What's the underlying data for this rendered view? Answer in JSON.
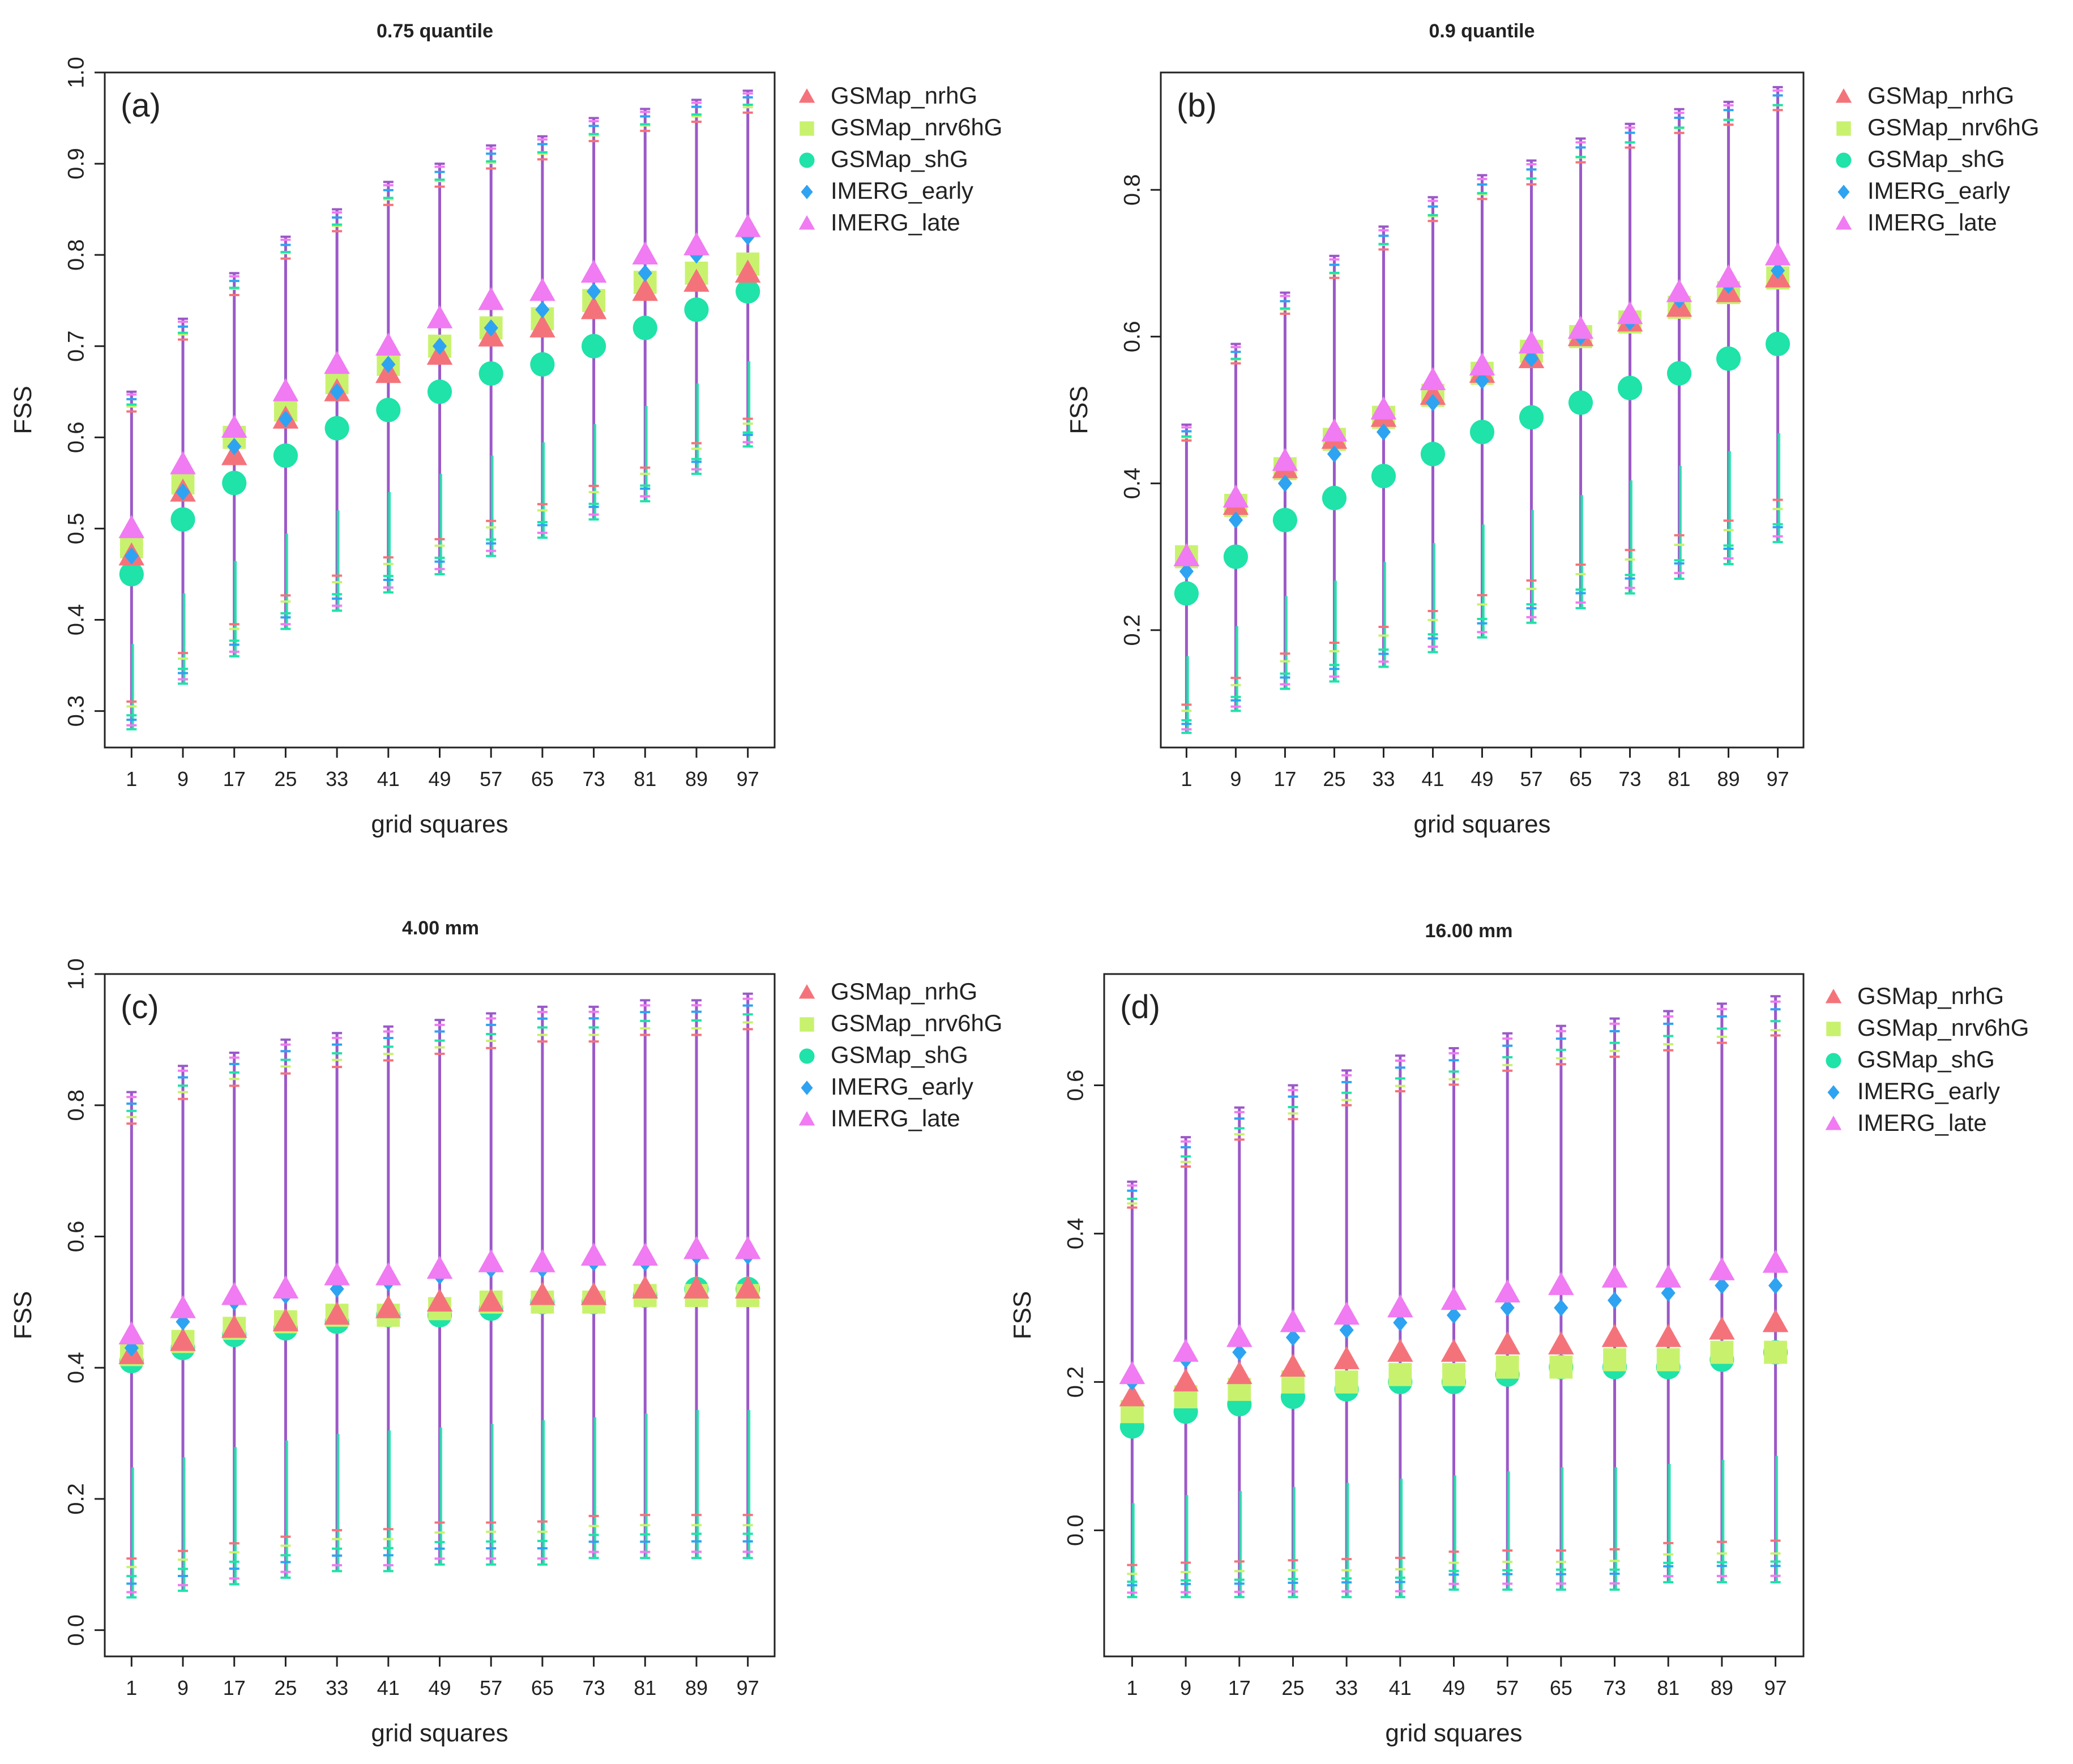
{
  "figure": {
    "legend_labels": [
      "GSMap_nrhG",
      "GSMap_nrv6hG",
      "GSMap_shG",
      "IMERG_early",
      "IMERG_late"
    ],
    "series_style": [
      {
        "name": "GSMap_nrhG",
        "color": "#F4737B",
        "marker": "triangle"
      },
      {
        "name": "GSMap_nrv6hG",
        "color": "#C8F26E",
        "marker": "square"
      },
      {
        "name": "GSMap_shG",
        "color": "#1FE3A8",
        "marker": "circle"
      },
      {
        "name": "IMERG_early",
        "color": "#2EA3F2",
        "marker": "diamond"
      },
      {
        "name": "IMERG_late",
        "color": "#F07BF2",
        "marker": "triangle"
      }
    ],
    "error_bar_color": "#9B59C8"
  },
  "chart_data": [
    {
      "type": "scatter",
      "panel_label": "(a)",
      "title": "0.75 quantile",
      "xlabel": "grid squares",
      "ylabel": "FSS",
      "categories": [
        1,
        9,
        17,
        25,
        33,
        41,
        49,
        57,
        65,
        73,
        81,
        89,
        97
      ],
      "ylim": [
        0.26,
        1.0
      ],
      "yticks": [
        0.3,
        0.4,
        0.5,
        0.6,
        0.7,
        0.8,
        0.9,
        1.0
      ],
      "legend_position": "right",
      "error_bars": {
        "lower_outer": [
          0.28,
          0.33,
          0.36,
          0.39,
          0.41,
          0.43,
          0.45,
          0.47,
          0.49,
          0.51,
          0.53,
          0.56,
          0.59
        ],
        "upper_outer": [
          0.65,
          0.73,
          0.78,
          0.82,
          0.85,
          0.88,
          0.9,
          0.92,
          0.93,
          0.95,
          0.96,
          0.97,
          0.98
        ]
      },
      "series": [
        {
          "name": "GSMap_nrhG",
          "values": [
            0.47,
            0.54,
            0.58,
            0.62,
            0.65,
            0.67,
            0.69,
            0.71,
            0.72,
            0.74,
            0.76,
            0.77,
            0.78
          ]
        },
        {
          "name": "GSMap_nrv6hG",
          "values": [
            0.48,
            0.55,
            0.6,
            0.63,
            0.66,
            0.68,
            0.7,
            0.72,
            0.73,
            0.75,
            0.77,
            0.78,
            0.79
          ]
        },
        {
          "name": "GSMap_shG",
          "values": [
            0.45,
            0.51,
            0.55,
            0.58,
            0.61,
            0.63,
            0.65,
            0.67,
            0.68,
            0.7,
            0.72,
            0.74,
            0.76
          ]
        },
        {
          "name": "IMERG_early",
          "values": [
            0.47,
            0.54,
            0.59,
            0.62,
            0.65,
            0.68,
            0.7,
            0.72,
            0.74,
            0.76,
            0.78,
            0.8,
            0.82
          ]
        },
        {
          "name": "IMERG_late",
          "values": [
            0.5,
            0.57,
            0.61,
            0.65,
            0.68,
            0.7,
            0.73,
            0.75,
            0.76,
            0.78,
            0.8,
            0.81,
            0.83
          ]
        }
      ]
    },
    {
      "type": "scatter",
      "panel_label": "(b)",
      "title": "0.9 quantile",
      "xlabel": "grid squares",
      "ylabel": "FSS",
      "categories": [
        1,
        9,
        17,
        25,
        33,
        41,
        49,
        57,
        65,
        73,
        81,
        89,
        97
      ],
      "ylim": [
        0.04,
        0.96
      ],
      "yticks": [
        0.2,
        0.4,
        0.6,
        0.8
      ],
      "legend_position": "right",
      "error_bars": {
        "lower_outer": [
          0.06,
          0.09,
          0.12,
          0.13,
          0.15,
          0.17,
          0.19,
          0.21,
          0.23,
          0.25,
          0.27,
          0.29,
          0.32
        ],
        "upper_outer": [
          0.48,
          0.59,
          0.66,
          0.71,
          0.75,
          0.79,
          0.82,
          0.84,
          0.87,
          0.89,
          0.91,
          0.92,
          0.94
        ]
      },
      "series": [
        {
          "name": "GSMap_nrhG",
          "values": [
            0.3,
            0.37,
            0.42,
            0.46,
            0.49,
            0.52,
            0.55,
            0.57,
            0.6,
            0.62,
            0.64,
            0.66,
            0.68
          ]
        },
        {
          "name": "GSMap_nrv6hG",
          "values": [
            0.3,
            0.37,
            0.42,
            0.46,
            0.49,
            0.52,
            0.55,
            0.58,
            0.6,
            0.62,
            0.64,
            0.66,
            0.68
          ]
        },
        {
          "name": "GSMap_shG",
          "values": [
            0.25,
            0.3,
            0.35,
            0.38,
            0.41,
            0.44,
            0.47,
            0.49,
            0.51,
            0.53,
            0.55,
            0.57,
            0.59
          ]
        },
        {
          "name": "IMERG_early",
          "values": [
            0.28,
            0.35,
            0.4,
            0.44,
            0.47,
            0.51,
            0.54,
            0.57,
            0.6,
            0.62,
            0.65,
            0.67,
            0.69
          ]
        },
        {
          "name": "IMERG_late",
          "values": [
            0.3,
            0.38,
            0.43,
            0.47,
            0.5,
            0.54,
            0.56,
            0.59,
            0.61,
            0.63,
            0.66,
            0.68,
            0.71
          ]
        }
      ]
    },
    {
      "type": "scatter",
      "panel_label": "(c)",
      "title": "4.00 mm",
      "xlabel": "grid squares",
      "ylabel": "FSS",
      "categories": [
        1,
        9,
        17,
        25,
        33,
        41,
        49,
        57,
        65,
        73,
        81,
        89,
        97
      ],
      "ylim": [
        -0.04,
        1.0
      ],
      "yticks": [
        0.0,
        0.2,
        0.4,
        0.6,
        0.8,
        1.0
      ],
      "legend_position": "right",
      "error_bars": {
        "lower_outer": [
          0.05,
          0.06,
          0.07,
          0.08,
          0.09,
          0.09,
          0.1,
          0.1,
          0.1,
          0.11,
          0.11,
          0.11,
          0.11
        ],
        "upper_outer": [
          0.82,
          0.86,
          0.88,
          0.9,
          0.91,
          0.92,
          0.93,
          0.94,
          0.95,
          0.95,
          0.96,
          0.96,
          0.97
        ]
      },
      "series": [
        {
          "name": "GSMap_nrhG",
          "values": [
            0.42,
            0.44,
            0.46,
            0.47,
            0.48,
            0.49,
            0.5,
            0.5,
            0.51,
            0.51,
            0.52,
            0.52,
            0.52
          ]
        },
        {
          "name": "GSMap_nrv6hG",
          "values": [
            0.42,
            0.44,
            0.46,
            0.47,
            0.48,
            0.48,
            0.49,
            0.5,
            0.5,
            0.5,
            0.51,
            0.51,
            0.51
          ]
        },
        {
          "name": "GSMap_shG",
          "values": [
            0.41,
            0.43,
            0.45,
            0.46,
            0.47,
            0.48,
            0.48,
            0.49,
            0.5,
            0.5,
            0.51,
            0.52,
            0.52
          ]
        },
        {
          "name": "IMERG_early",
          "values": [
            0.43,
            0.47,
            0.5,
            0.51,
            0.52,
            0.53,
            0.54,
            0.55,
            0.55,
            0.56,
            0.56,
            0.57,
            0.57
          ]
        },
        {
          "name": "IMERG_late",
          "values": [
            0.45,
            0.49,
            0.51,
            0.52,
            0.54,
            0.54,
            0.55,
            0.56,
            0.56,
            0.57,
            0.57,
            0.58,
            0.58
          ]
        }
      ]
    },
    {
      "type": "scatter",
      "panel_label": "(d)",
      "title": "16.00 mm",
      "xlabel": "grid squares",
      "ylabel": "FSS",
      "categories": [
        1,
        9,
        17,
        25,
        33,
        41,
        49,
        57,
        65,
        73,
        81,
        89,
        97
      ],
      "ylim": [
        -0.17,
        0.75
      ],
      "yticks": [
        0.0,
        0.2,
        0.4,
        0.6
      ],
      "legend_position": "right",
      "error_bars": {
        "lower_outer": [
          -0.09,
          -0.09,
          -0.09,
          -0.09,
          -0.09,
          -0.09,
          -0.08,
          -0.08,
          -0.08,
          -0.08,
          -0.07,
          -0.07,
          -0.07
        ],
        "upper_outer": [
          0.47,
          0.53,
          0.57,
          0.6,
          0.62,
          0.64,
          0.65,
          0.67,
          0.68,
          0.69,
          0.7,
          0.71,
          0.72
        ]
      },
      "series": [
        {
          "name": "GSMap_nrhG",
          "values": [
            0.18,
            0.2,
            0.21,
            0.22,
            0.23,
            0.24,
            0.24,
            0.25,
            0.25,
            0.26,
            0.26,
            0.27,
            0.28
          ]
        },
        {
          "name": "GSMap_nrv6hG",
          "values": [
            0.16,
            0.18,
            0.19,
            0.2,
            0.2,
            0.21,
            0.21,
            0.22,
            0.22,
            0.23,
            0.23,
            0.24,
            0.24
          ]
        },
        {
          "name": "GSMap_shG",
          "values": [
            0.14,
            0.16,
            0.17,
            0.18,
            0.19,
            0.2,
            0.2,
            0.21,
            0.22,
            0.22,
            0.22,
            0.23,
            0.24
          ]
        },
        {
          "name": "IMERG_early",
          "values": [
            0.2,
            0.23,
            0.24,
            0.26,
            0.27,
            0.28,
            0.29,
            0.3,
            0.3,
            0.31,
            0.32,
            0.33,
            0.33
          ]
        },
        {
          "name": "IMERG_late",
          "values": [
            0.21,
            0.24,
            0.26,
            0.28,
            0.29,
            0.3,
            0.31,
            0.32,
            0.33,
            0.34,
            0.34,
            0.35,
            0.36
          ]
        }
      ]
    }
  ]
}
